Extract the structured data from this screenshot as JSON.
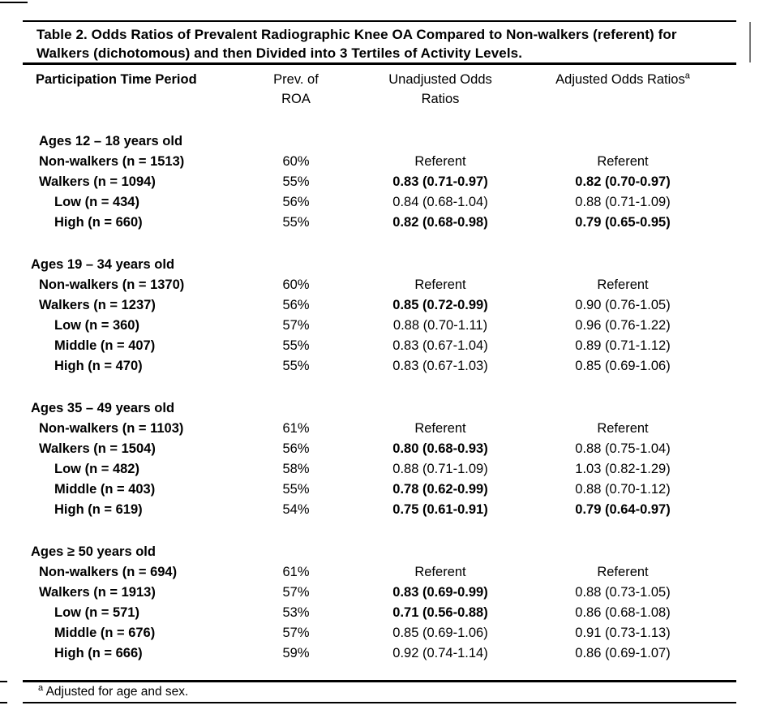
{
  "meta": {
    "ink_color": "#000000",
    "background_color": "#ffffff"
  },
  "title": "Table 2. Odds Ratios of Prevalent Radiographic Knee OA Compared to Non-walkers (referent) for Walkers (dichotomous) and then Divided into 3 Tertiles of Activity Levels.",
  "header": {
    "col1": "Participation Time Period",
    "col2_line1": "Prev. of",
    "col2_line2": "ROA",
    "col3_line1": "Unadjusted Odds",
    "col3_line2": "Ratios",
    "col4": "Adjusted Odds Ratios",
    "col4_sup": "a"
  },
  "sections": [
    {
      "header": "Ages 12 – 18 years old",
      "header_indent": 1,
      "rows": [
        {
          "label": "Non-walkers (n = 1513)",
          "indent": 1,
          "prev": "60%",
          "unadjusted": "Referent",
          "unadjusted_bold": false,
          "adjusted": "Referent",
          "adjusted_bold": false
        },
        {
          "label": "Walkers (n = 1094)",
          "indent": 1,
          "prev": "55%",
          "unadjusted": "0.83 (0.71-0.97)",
          "unadjusted_bold": true,
          "adjusted": "0.82 (0.70-0.97)",
          "adjusted_bold": true
        },
        {
          "label": "Low (n = 434)",
          "indent": 2,
          "prev": "56%",
          "unadjusted": "0.84 (0.68-1.04)",
          "unadjusted_bold": false,
          "adjusted": "0.88 (0.71-1.09)",
          "adjusted_bold": false
        },
        {
          "label": "High (n = 660)",
          "indent": 2,
          "prev": "55%",
          "unadjusted": "0.82 (0.68-0.98)",
          "unadjusted_bold": true,
          "adjusted": "0.79 (0.65-0.95)",
          "adjusted_bold": true
        }
      ]
    },
    {
      "header": "Ages 19 – 34 years old",
      "header_indent": 0,
      "rows": [
        {
          "label": "Non-walkers (n = 1370)",
          "indent": 1,
          "prev": "60%",
          "unadjusted": "Referent",
          "unadjusted_bold": false,
          "adjusted": "Referent",
          "adjusted_bold": false
        },
        {
          "label": "Walkers (n = 1237)",
          "indent": 1,
          "prev": "56%",
          "unadjusted": "0.85 (0.72-0.99)",
          "unadjusted_bold": true,
          "adjusted": "0.90 (0.76-1.05)",
          "adjusted_bold": false
        },
        {
          "label": "Low (n = 360)",
          "indent": 2,
          "prev": "57%",
          "unadjusted": "0.88 (0.70-1.11)",
          "unadjusted_bold": false,
          "adjusted": "0.96 (0.76-1.22)",
          "adjusted_bold": false
        },
        {
          "label": "Middle (n = 407)",
          "indent": 2,
          "prev": "55%",
          "unadjusted": "0.83 (0.67-1.04)",
          "unadjusted_bold": false,
          "adjusted": "0.89 (0.71-1.12)",
          "adjusted_bold": false
        },
        {
          "label": "High (n = 470)",
          "indent": 2,
          "prev": "55%",
          "unadjusted": "0.83 (0.67-1.03)",
          "unadjusted_bold": false,
          "adjusted": "0.85 (0.69-1.06)",
          "adjusted_bold": false
        }
      ]
    },
    {
      "header": "Ages 35 – 49 years old",
      "header_indent": 0,
      "rows": [
        {
          "label": "Non-walkers (n = 1103)",
          "indent": 1,
          "prev": "61%",
          "unadjusted": "Referent",
          "unadjusted_bold": false,
          "adjusted": "Referent",
          "adjusted_bold": false
        },
        {
          "label": "Walkers (n = 1504)",
          "indent": 1,
          "prev": "56%",
          "unadjusted": "0.80 (0.68-0.93)",
          "unadjusted_bold": true,
          "adjusted": "0.88 (0.75-1.04)",
          "adjusted_bold": false
        },
        {
          "label": "Low (n = 482)",
          "indent": 2,
          "prev": "58%",
          "unadjusted": "0.88 (0.71-1.09)",
          "unadjusted_bold": false,
          "adjusted": "1.03 (0.82-1.29)",
          "adjusted_bold": false
        },
        {
          "label": "Middle (n = 403)",
          "indent": 2,
          "prev": "55%",
          "unadjusted": "0.78 (0.62-0.99)",
          "unadjusted_bold": true,
          "adjusted": "0.88 (0.70-1.12)",
          "adjusted_bold": false
        },
        {
          "label": "High (n = 619)",
          "indent": 2,
          "prev": "54%",
          "unadjusted": "0.75 (0.61-0.91)",
          "unadjusted_bold": true,
          "adjusted": "0.79 (0.64-0.97)",
          "adjusted_bold": true
        }
      ]
    },
    {
      "header": "Ages ≥ 50 years old",
      "header_indent": 0,
      "rows": [
        {
          "label": "Non-walkers (n = 694)",
          "indent": 1,
          "prev": "61%",
          "unadjusted": "Referent",
          "unadjusted_bold": false,
          "adjusted": "Referent",
          "adjusted_bold": false
        },
        {
          "label": "Walkers (n = 1913)",
          "indent": 1,
          "prev": "57%",
          "unadjusted": "0.83 (0.69-0.99)",
          "unadjusted_bold": true,
          "adjusted": "0.88 (0.73-1.05)",
          "adjusted_bold": false
        },
        {
          "label": "Low (n = 571)",
          "indent": 2,
          "prev": "53%",
          "unadjusted": "0.71 (0.56-0.88)",
          "unadjusted_bold": true,
          "adjusted": "0.86 (0.68-1.08)",
          "adjusted_bold": false
        },
        {
          "label": "Middle (n = 676)",
          "indent": 2,
          "prev": "57%",
          "unadjusted": "0.85 (0.69-1.06)",
          "unadjusted_bold": false,
          "adjusted": "0.91 (0.73-1.13)",
          "adjusted_bold": false
        },
        {
          "label": "High (n = 666)",
          "indent": 2,
          "prev": "59%",
          "unadjusted": "0.92 (0.74-1.14)",
          "unadjusted_bold": false,
          "adjusted": "0.86 (0.69-1.07)",
          "adjusted_bold": false
        }
      ]
    }
  ],
  "footnote": {
    "sup": "a",
    "text": " Adjusted for age and sex."
  }
}
